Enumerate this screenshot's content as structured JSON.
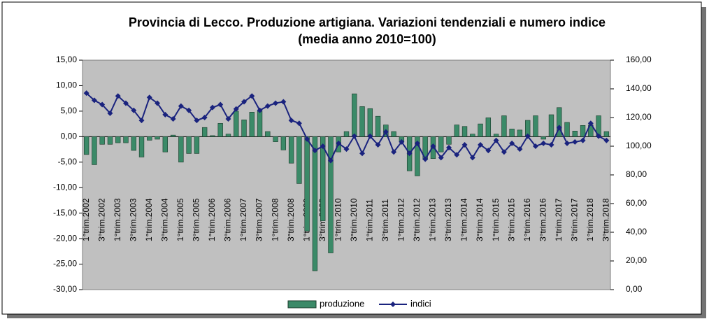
{
  "chart_data": {
    "type": "bar-line",
    "title": "Provincia di Lecco. Produzione artigiana. Variazioni tendenziali e numero indice",
    "subtitle": "(media anno 2010=100)",
    "categories": [
      "1°trim.2002",
      null,
      "3°trim.2002",
      null,
      "1°trim.2003",
      null,
      "3°trim.2003",
      null,
      "1°trim.2004",
      null,
      "3°trim.2004",
      null,
      "1°trim.2005",
      null,
      "3°trim.2005",
      null,
      "1°trim.2006",
      null,
      "3°trim.2006",
      null,
      "1°trim.2007",
      null,
      "3°trim.2007",
      null,
      "1°trim.2008",
      null,
      "3°trim.2008",
      null,
      "1°trim.2009",
      null,
      "3°trim.2009",
      null,
      "1°trim.2010",
      null,
      "3°trim.2010",
      null,
      "1°trim.2011",
      null,
      "3°trim.2011",
      null,
      "1°trim.2012",
      null,
      "3°trim.2012",
      null,
      "1°trim.2013",
      null,
      "3°trim.2013",
      null,
      "1°trim.2014",
      null,
      "3°trim.2014",
      null,
      "1°trim.2015",
      null,
      "3°trim.2015",
      null,
      "1°trim.2016",
      null,
      "3°trim.2016",
      null,
      "1°trim.2017",
      null,
      "3°trim.2017",
      null,
      "1°trim.2018",
      null,
      "3°trim.2018"
    ],
    "series": [
      {
        "name": "produzione",
        "color": "#3b8a68",
        "kind": "bar",
        "values": [
          -3.5,
          -5.5,
          -1.5,
          -1.5,
          -1.2,
          -1.2,
          -2.7,
          -4,
          -0.7,
          -0.5,
          -3,
          0.3,
          -5,
          -3.3,
          -3.3,
          1.8,
          0.2,
          2.6,
          0.5,
          5,
          3.3,
          4.8,
          5,
          1,
          -1,
          -2.6,
          -5.2,
          -9.2,
          -18.5,
          -26.3,
          -16.5,
          -22.8,
          -3,
          1,
          8.4,
          5.9,
          5.5,
          4,
          2.3,
          1,
          -1,
          -6.7,
          -7.7,
          -4.5,
          -4.3,
          -3,
          -1.5,
          2.3,
          2,
          0.5,
          2.5,
          3.7,
          0.5,
          4.1,
          1.5,
          1.3,
          3.2,
          4.1,
          -0.5,
          4.3,
          5.7,
          2.8,
          1.1,
          2.2,
          2.3,
          4.1,
          1
        ]
      },
      {
        "name": "indici",
        "color": "#1a237e",
        "kind": "line",
        "axis": "y2",
        "values": [
          137,
          132,
          129,
          123,
          135,
          130,
          125,
          118,
          134,
          130,
          122,
          119,
          128,
          125,
          118,
          120,
          127,
          129,
          119,
          126,
          131,
          135,
          125,
          128,
          130,
          131,
          118,
          116,
          105,
          97,
          100,
          90,
          102,
          98,
          107,
          95,
          107,
          101,
          110,
          96,
          103,
          95,
          102,
          91,
          100,
          92,
          99,
          94,
          101,
          92,
          101,
          97,
          104,
          96,
          102,
          98,
          107,
          100,
          102,
          101,
          113,
          102,
          103,
          104,
          116,
          107,
          104
        ]
      }
    ],
    "ylim": [
      -30,
      15
    ],
    "yticks": [
      {
        "value": -30,
        "label": "-30,00"
      },
      {
        "value": -25,
        "label": "-25,00"
      },
      {
        "value": -20,
        "label": "-20,00"
      },
      {
        "value": -15,
        "label": "-15,00"
      },
      {
        "value": -10,
        "label": "-10,00"
      },
      {
        "value": -5,
        "label": "-5,00"
      },
      {
        "value": 0,
        "label": "0,00"
      },
      {
        "value": 5,
        "label": "5,00"
      },
      {
        "value": 10,
        "label": "10,00"
      },
      {
        "value": 15,
        "label": "15,00"
      }
    ],
    "y2lim": [
      0,
      160
    ],
    "y2ticks": [
      {
        "value": 0,
        "label": "0,00"
      },
      {
        "value": 20,
        "label": "20,00"
      },
      {
        "value": 40,
        "label": "40,00"
      },
      {
        "value": 60,
        "label": "60,00"
      },
      {
        "value": 80,
        "label": "80,00"
      },
      {
        "value": 100,
        "label": "100,00"
      },
      {
        "value": 120,
        "label": "120,00"
      },
      {
        "value": 140,
        "label": "140,00"
      },
      {
        "value": 160,
        "label": "160,00"
      }
    ],
    "legend": "bottom"
  }
}
